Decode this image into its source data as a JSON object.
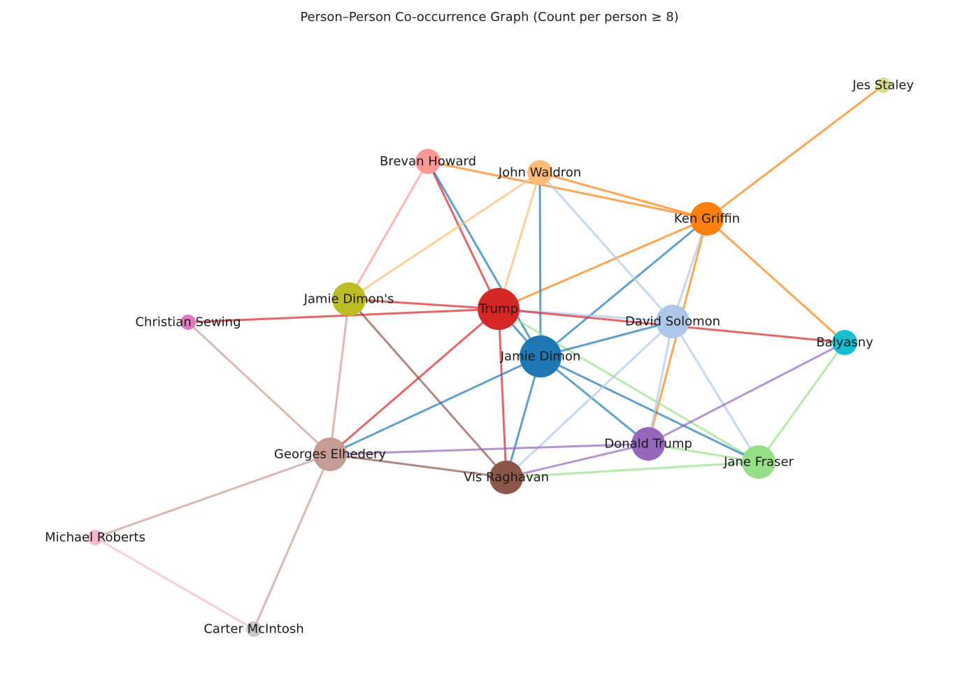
{
  "title": "Person–Person Co-occurrence Graph (Count per person ≥ 8)",
  "nodes": [
    {
      "id": "trump",
      "label": "Trump",
      "color": "#d62728",
      "size": "large"
    },
    {
      "id": "jamie-dimon",
      "label": "Jamie Dimon",
      "color": "#1f77b4",
      "size": "large"
    },
    {
      "id": "ken-griffin",
      "label": "Ken Griffin",
      "color": "#ff7f0e",
      "size": "medium"
    },
    {
      "id": "david-solomon",
      "label": "David Solomon",
      "color": "#aec7e8",
      "size": "medium"
    },
    {
      "id": "georges-elhedery",
      "label": "Georges Elhedery",
      "color": "#c49c94",
      "size": "medium"
    },
    {
      "id": "vis-raghavan",
      "label": "Vis Raghavan",
      "color": "#8c564b",
      "size": "medium"
    },
    {
      "id": "donald-trump",
      "label": "Donald Trump",
      "color": "#9467bd",
      "size": "medium"
    },
    {
      "id": "jane-fraser",
      "label": "Jane Fraser",
      "color": "#98df8a",
      "size": "medium"
    },
    {
      "id": "jamie-dimons",
      "label": "Jamie Dimon's",
      "color": "#bcbd22",
      "size": "medium"
    },
    {
      "id": "john-waldron",
      "label": "John Waldron",
      "color": "#ffbb78",
      "size": "small"
    },
    {
      "id": "brevan-howard",
      "label": "Brevan Howard",
      "color": "#ff9896",
      "size": "small"
    },
    {
      "id": "balyasny",
      "label": "Balyasny",
      "color": "#17becf",
      "size": "small"
    },
    {
      "id": "christian-sewing",
      "label": "Christian Sewing",
      "color": "#e377c2",
      "size": "tiny"
    },
    {
      "id": "michael-roberts",
      "label": "Michael Roberts",
      "color": "#f7b6d2",
      "size": "tiny"
    },
    {
      "id": "carter-mcintosh",
      "label": "Carter McIntosh",
      "color": "#c7c7c7",
      "size": "tiny"
    },
    {
      "id": "jes-staley",
      "label": "Jes Staley",
      "color": "#dbdb8d",
      "size": "tiny"
    }
  ],
  "edges": [
    {
      "source": "jes-staley",
      "target": "ken-griffin",
      "color": "#ff7f0e"
    },
    {
      "source": "brevan-howard",
      "target": "ken-griffin",
      "color": "#ff7f0e"
    },
    {
      "source": "john-waldron",
      "target": "ken-griffin",
      "color": "#ff7f0e"
    },
    {
      "source": "ken-griffin",
      "target": "trump",
      "color": "#ff7f0e"
    },
    {
      "source": "ken-griffin",
      "target": "balyasny",
      "color": "#ff7f0e"
    },
    {
      "source": "ken-griffin",
      "target": "donald-trump",
      "color": "#ff7f0e"
    },
    {
      "source": "ken-griffin",
      "target": "jamie-dimon",
      "color": "#1f77b4"
    },
    {
      "source": "ken-griffin",
      "target": "david-solomon",
      "color": "#aec7e8"
    },
    {
      "source": "brevan-howard",
      "target": "trump",
      "color": "#d62728"
    },
    {
      "source": "brevan-howard",
      "target": "jamie-dimon",
      "color": "#1f77b4"
    },
    {
      "source": "brevan-howard",
      "target": "jamie-dimons",
      "color": "#ff9896"
    },
    {
      "source": "john-waldron",
      "target": "jamie-dimons",
      "color": "#ffbb78"
    },
    {
      "source": "john-waldron",
      "target": "trump",
      "color": "#ffbb78"
    },
    {
      "source": "john-waldron",
      "target": "jamie-dimon",
      "color": "#1f77b4"
    },
    {
      "source": "john-waldron",
      "target": "david-solomon",
      "color": "#aec7e8"
    },
    {
      "source": "jamie-dimons",
      "target": "trump",
      "color": "#d62728"
    },
    {
      "source": "jamie-dimons",
      "target": "georges-elhedery",
      "color": "#c49c94"
    },
    {
      "source": "jamie-dimons",
      "target": "vis-raghavan",
      "color": "#8c564b"
    },
    {
      "source": "christian-sewing",
      "target": "trump",
      "color": "#d62728"
    },
    {
      "source": "christian-sewing",
      "target": "georges-elhedery",
      "color": "#c49c94"
    },
    {
      "source": "trump",
      "target": "david-solomon",
      "color": "#aec7e8"
    },
    {
      "source": "trump",
      "target": "balyasny",
      "color": "#d62728"
    },
    {
      "source": "trump",
      "target": "georges-elhedery",
      "color": "#d62728"
    },
    {
      "source": "trump",
      "target": "vis-raghavan",
      "color": "#d62728"
    },
    {
      "source": "trump",
      "target": "jane-fraser",
      "color": "#98df8a"
    },
    {
      "source": "trump",
      "target": "jamie-dimon",
      "color": "#1f77b4"
    },
    {
      "source": "jamie-dimon",
      "target": "david-solomon",
      "color": "#1f77b4"
    },
    {
      "source": "jamie-dimon",
      "target": "georges-elhedery",
      "color": "#1f77b4"
    },
    {
      "source": "jamie-dimon",
      "target": "vis-raghavan",
      "color": "#1f77b4"
    },
    {
      "source": "jamie-dimon",
      "target": "donald-trump",
      "color": "#1f77b4"
    },
    {
      "source": "jamie-dimon",
      "target": "jane-fraser",
      "color": "#1f77b4"
    },
    {
      "source": "david-solomon",
      "target": "vis-raghavan",
      "color": "#aec7e8"
    },
    {
      "source": "david-solomon",
      "target": "donald-trump",
      "color": "#aec7e8"
    },
    {
      "source": "david-solomon",
      "target": "jane-fraser",
      "color": "#aec7e8"
    },
    {
      "source": "balyasny",
      "target": "donald-trump",
      "color": "#9467bd"
    },
    {
      "source": "balyasny",
      "target": "jane-fraser",
      "color": "#98df8a"
    },
    {
      "source": "georges-elhedery",
      "target": "donald-trump",
      "color": "#9467bd"
    },
    {
      "source": "georges-elhedery",
      "target": "vis-raghavan",
      "color": "#8c564b"
    },
    {
      "source": "georges-elhedery",
      "target": "michael-roberts",
      "color": "#c49c94"
    },
    {
      "source": "georges-elhedery",
      "target": "carter-mcintosh",
      "color": "#c49c94"
    },
    {
      "source": "vis-raghavan",
      "target": "donald-trump",
      "color": "#9467bd"
    },
    {
      "source": "vis-raghavan",
      "target": "jane-fraser",
      "color": "#98df8a"
    },
    {
      "source": "donald-trump",
      "target": "jane-fraser",
      "color": "#98df8a"
    },
    {
      "source": "michael-roberts",
      "target": "carter-mcintosh",
      "color": "#f7b6d2"
    }
  ]
}
